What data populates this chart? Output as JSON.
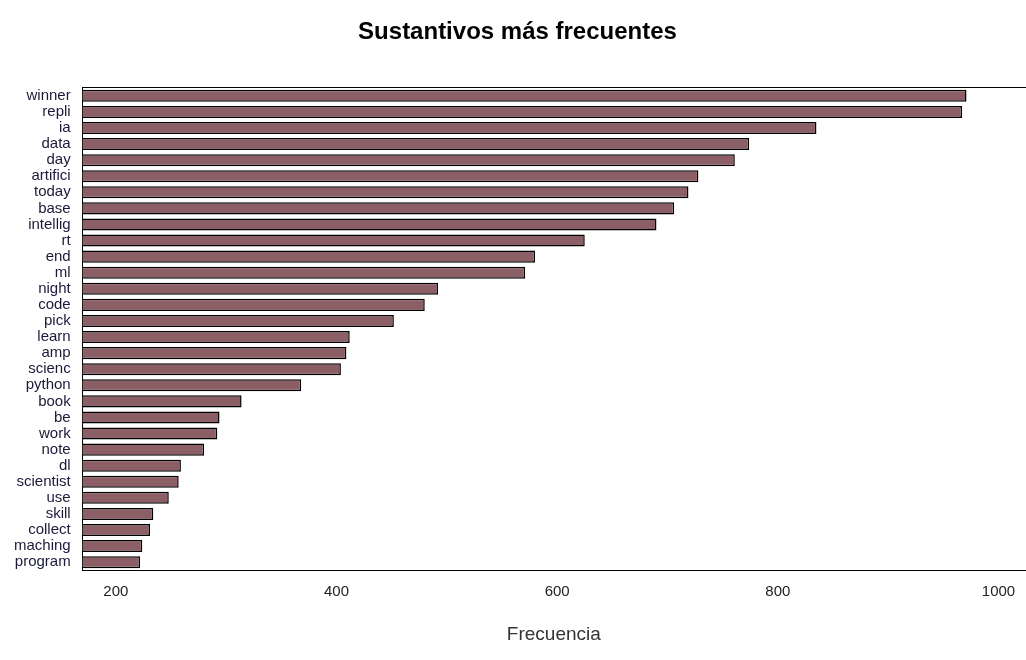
{
  "chart_data": {
    "type": "bar",
    "orientation": "horizontal",
    "title": "Sustantivos más frecuentes",
    "xlabel": "Frecuencia",
    "categories": [
      "winner",
      "repli",
      "ia",
      "data",
      "day",
      "artifici",
      "today",
      "base",
      "intellig",
      "rt",
      "end",
      "ml",
      "night",
      "code",
      "pick",
      "learn",
      "amp",
      "scienc",
      "python",
      "book",
      "be",
      "work",
      "note",
      "dl",
      "scientist",
      "use",
      "skill",
      "collect",
      "maching",
      "program"
    ],
    "values": [
      971,
      967,
      835,
      774,
      761,
      728,
      719,
      706,
      690,
      625,
      580,
      571,
      492,
      480,
      452,
      412,
      409,
      404,
      368,
      314,
      294,
      292,
      280,
      259,
      257,
      248,
      234,
      231,
      224,
      222
    ],
    "color": "#8b5f65",
    "xlim": [
      170,
      1024
    ],
    "xticks": [
      200,
      400,
      600,
      800,
      1000
    ],
    "grid": false,
    "legend": false
  }
}
